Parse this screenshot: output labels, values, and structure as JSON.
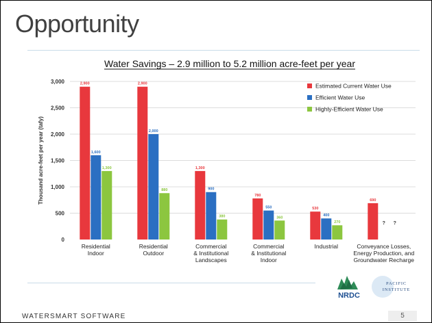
{
  "slide": {
    "title": "Opportunity",
    "footer": "WATERSMART SOFTWARE",
    "page_number": "5"
  },
  "logos": {
    "nrdc": "NRDC",
    "pacific_line1": "PACIFIC",
    "pacific_line2": "INSTITUTE"
  },
  "chart_data": {
    "type": "bar",
    "title": "Water Savings – 2.9 million to 5.2 million acre-feet per year",
    "ylabel": "Thousand acre-feet per year (tafy)",
    "xlabel": "",
    "ylim": [
      0,
      3000
    ],
    "yticks": [
      0,
      500,
      1000,
      1500,
      2000,
      2500,
      3000
    ],
    "ytick_labels": [
      "0",
      "500",
      "1,000",
      "1,500",
      "2,000",
      "2,500",
      "3,000"
    ],
    "categories": [
      [
        "Residential",
        "Indoor"
      ],
      [
        "Residential",
        "Outdoor"
      ],
      [
        "Commercial",
        "& Institutional",
        "Landscapes"
      ],
      [
        "Commercial",
        "& Institutional",
        "Indoor"
      ],
      [
        "Industrial"
      ],
      [
        "Conveyance Losses,",
        "Energy Production, and",
        "Groundwater Recharge"
      ]
    ],
    "series": [
      {
        "name": "Estimated Current Water Use",
        "color": "#e8383d",
        "values": [
          2900,
          2900,
          1300,
          780,
          530,
          690
        ],
        "labels": [
          "2,900",
          "2,900",
          "1,300",
          "780",
          "530",
          "690"
        ]
      },
      {
        "name": "Efficient Water Use",
        "color": "#2b6fc2",
        "values": [
          1600,
          2000,
          900,
          550,
          400,
          null
        ],
        "labels": [
          "1,600",
          "2,000",
          "900",
          "550",
          "400",
          "?"
        ]
      },
      {
        "name": "Highly-Efficient Water Use",
        "color": "#8cc63f",
        "values": [
          1300,
          880,
          380,
          360,
          270,
          null
        ],
        "labels": [
          "1,300",
          "880",
          "380",
          "360",
          "270",
          "?"
        ]
      }
    ],
    "grid": true,
    "legend_position": "top-right"
  }
}
